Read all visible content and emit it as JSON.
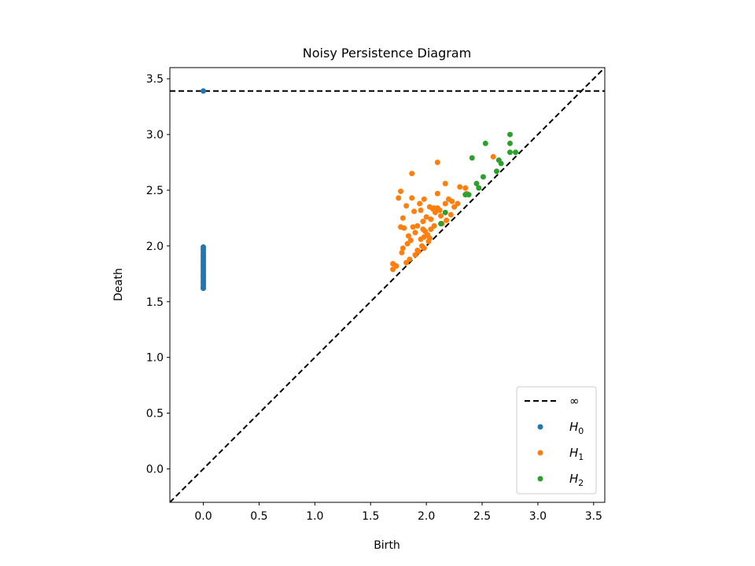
{
  "chart_data": {
    "type": "scatter",
    "title": "Noisy Persistence Diagram",
    "xlabel": "Birth",
    "ylabel": "Death",
    "xlim": [
      -0.3,
      3.6
    ],
    "ylim": [
      -0.3,
      3.6
    ],
    "xticks": [
      "0.0",
      "0.5",
      "1.0",
      "1.5",
      "2.0",
      "2.5",
      "3.0",
      "3.5"
    ],
    "yticks": [
      "0.0",
      "0.5",
      "1.0",
      "1.5",
      "2.0",
      "2.5",
      "3.0",
      "3.5"
    ],
    "grid": false,
    "legend_position": "lower-right",
    "infinity_line": {
      "label": "∞",
      "y": 3.39,
      "color": "#000000",
      "style": "dashed"
    },
    "diagonal": {
      "color": "#000000",
      "style": "dashed"
    },
    "series": [
      {
        "name": "H0",
        "legend_base": "H",
        "legend_sub": "0",
        "color": "#1f77b4",
        "points": [
          [
            0,
            3.39
          ],
          [
            0,
            1.99
          ],
          [
            0,
            1.97
          ],
          [
            0,
            1.95
          ],
          [
            0,
            1.93
          ],
          [
            0,
            1.91
          ],
          [
            0,
            1.89
          ],
          [
            0,
            1.87
          ],
          [
            0,
            1.85
          ],
          [
            0,
            1.83
          ],
          [
            0,
            1.81
          ],
          [
            0,
            1.79
          ],
          [
            0,
            1.77
          ],
          [
            0,
            1.75
          ],
          [
            0,
            1.73
          ],
          [
            0,
            1.71
          ],
          [
            0,
            1.69
          ],
          [
            0,
            1.67
          ],
          [
            0,
            1.65
          ],
          [
            0,
            1.63
          ],
          [
            0,
            1.62
          ]
        ]
      },
      {
        "name": "H1",
        "legend_base": "H",
        "legend_sub": "1",
        "color": "#ff7f0e",
        "points": [
          [
            1.87,
            2.65
          ],
          [
            2.1,
            2.75
          ],
          [
            1.77,
            2.49
          ],
          [
            1.75,
            2.43
          ],
          [
            1.87,
            2.43
          ],
          [
            2.1,
            2.47
          ],
          [
            2.17,
            2.56
          ],
          [
            2.3,
            2.53
          ],
          [
            2.35,
            2.52
          ],
          [
            2.6,
            2.8
          ],
          [
            1.82,
            2.36
          ],
          [
            1.94,
            2.38
          ],
          [
            1.98,
            2.42
          ],
          [
            1.95,
            2.32
          ],
          [
            1.89,
            2.31
          ],
          [
            1.79,
            2.25
          ],
          [
            1.77,
            2.17
          ],
          [
            1.8,
            2.16
          ],
          [
            1.88,
            2.17
          ],
          [
            1.92,
            2.18
          ],
          [
            1.84,
            2.09
          ],
          [
            1.9,
            2.12
          ],
          [
            1.97,
            2.15
          ],
          [
            2.0,
            2.26
          ],
          [
            2.03,
            2.35
          ],
          [
            2.06,
            2.33
          ],
          [
            2.08,
            2.3
          ],
          [
            2.1,
            2.34
          ],
          [
            2.13,
            2.27
          ],
          [
            2.04,
            2.24
          ],
          [
            1.97,
            2.22
          ],
          [
            1.86,
            2.05
          ],
          [
            1.83,
            2.02
          ],
          [
            1.79,
            1.98
          ],
          [
            1.78,
            1.94
          ],
          [
            1.7,
            1.84
          ],
          [
            1.7,
            1.79
          ],
          [
            1.82,
            1.85
          ],
          [
            1.85,
            1.88
          ],
          [
            1.9,
            1.92
          ],
          [
            1.93,
            1.95
          ],
          [
            1.96,
            2.0
          ],
          [
            1.95,
            2.06
          ],
          [
            1.98,
            2.08
          ],
          [
            2.01,
            2.1
          ],
          [
            1.99,
            2.13
          ],
          [
            2.04,
            2.15
          ],
          [
            2.07,
            2.18
          ],
          [
            2.17,
            2.38
          ],
          [
            2.2,
            2.42
          ],
          [
            2.23,
            2.4
          ],
          [
            2.22,
            2.28
          ],
          [
            2.14,
            2.2
          ],
          [
            2.18,
            2.23
          ],
          [
            2.02,
            2.04
          ],
          [
            1.92,
            1.96
          ],
          [
            1.98,
            1.98
          ],
          [
            2.03,
            2.07
          ],
          [
            2.12,
            2.32
          ],
          [
            2.25,
            2.35
          ],
          [
            2.28,
            2.38
          ],
          [
            2.36,
            2.47
          ],
          [
            2.07,
            2.34
          ],
          [
            1.73,
            1.82
          ]
        ]
      },
      {
        "name": "H2",
        "legend_base": "H",
        "legend_sub": "2",
        "color": "#2ca02c",
        "points": [
          [
            2.75,
            3.0
          ],
          [
            2.75,
            2.92
          ],
          [
            2.53,
            2.92
          ],
          [
            2.75,
            2.84
          ],
          [
            2.8,
            2.84
          ],
          [
            2.41,
            2.79
          ],
          [
            2.65,
            2.77
          ],
          [
            2.67,
            2.74
          ],
          [
            2.63,
            2.67
          ],
          [
            2.51,
            2.62
          ],
          [
            2.45,
            2.56
          ],
          [
            2.47,
            2.52
          ],
          [
            2.35,
            2.46
          ],
          [
            2.38,
            2.46
          ],
          [
            2.17,
            2.3
          ],
          [
            2.13,
            2.2
          ]
        ]
      }
    ]
  }
}
